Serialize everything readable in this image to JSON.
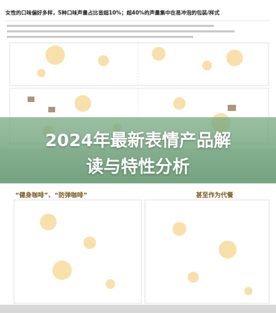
{
  "page": {
    "top_title": "女性的口味偏好多样，5种口味声量占比皆超10%；超40%的声量集中在易冲泡的包装/样式",
    "banner_lines": [
      "2024年最新表情产品解",
      "读与特性分析"
    ],
    "bottom_title": "“健身咖啡”、“防弹咖啡”",
    "bottom_title_tail": "甚至作为代餐"
  }
}
